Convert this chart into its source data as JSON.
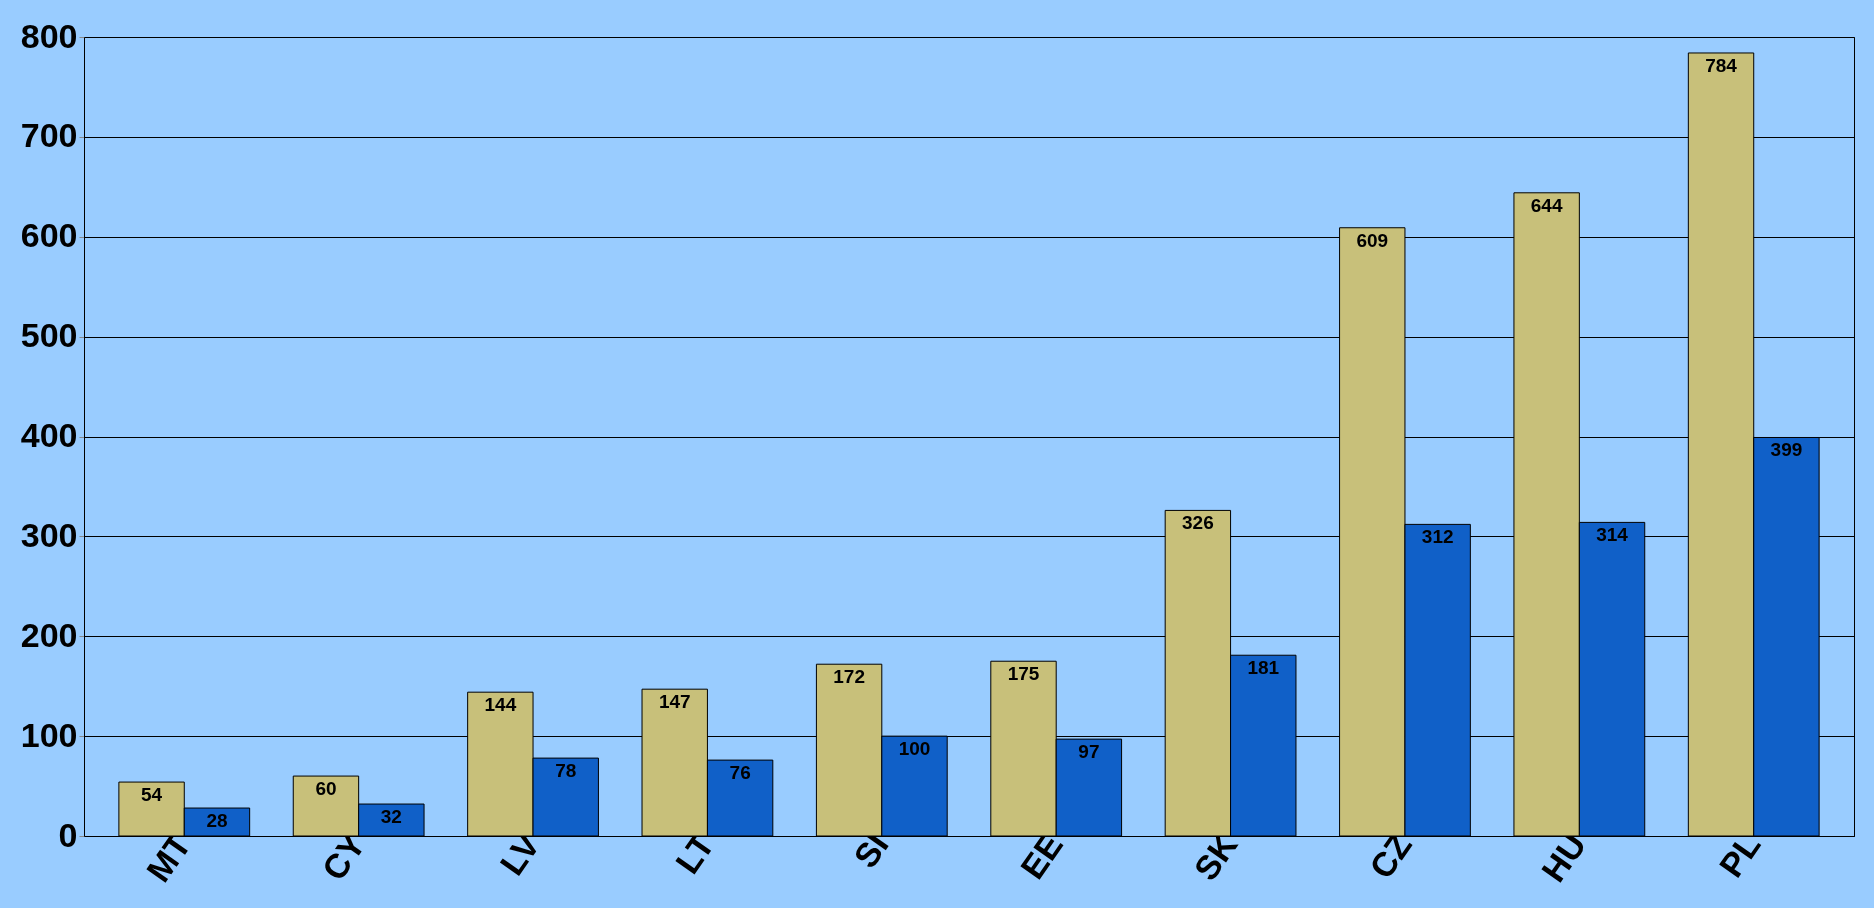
{
  "chart_data": {
    "type": "bar",
    "categories": [
      "MT",
      "CY",
      "LV",
      "LT",
      "SI",
      "EE",
      "SK",
      "CZ",
      "HU",
      "PL"
    ],
    "series": [
      {
        "color": "#c8c07a",
        "values": [
          54,
          60,
          144,
          147,
          172,
          175,
          326,
          609,
          644,
          784
        ]
      },
      {
        "color": "#1060c8",
        "values": [
          28,
          32,
          78,
          76,
          100,
          97,
          181,
          312,
          314,
          399
        ]
      }
    ],
    "ylim": [
      0,
      800
    ],
    "yticks": [
      0,
      100,
      200,
      300,
      400,
      500,
      600,
      700,
      800
    ],
    "grid": "y",
    "data_labels": true,
    "legend": false
  }
}
